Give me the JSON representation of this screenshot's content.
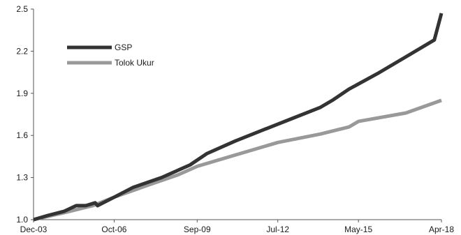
{
  "chart_data": {
    "type": "line",
    "xlabel": "",
    "ylabel": "",
    "x_ticks": [
      "Dec-03",
      "Oct-06",
      "Sep-09",
      "Jul-12",
      "May-15",
      "Apr-18"
    ],
    "x_range": [
      "Dec-03",
      "Apr-18"
    ],
    "y_ticks": [
      "1.0",
      "1.3",
      "1.6",
      "1.9",
      "2.2",
      "2.5"
    ],
    "ylim": [
      1.0,
      2.5
    ],
    "grid": false,
    "legend_position": "top-left",
    "series": [
      {
        "name": "GSP",
        "color": "#333333",
        "points": [
          [
            "Dec-03",
            1.0
          ],
          [
            "Jun-04",
            1.03
          ],
          [
            "Jan-05",
            1.06
          ],
          [
            "Jun-05",
            1.1
          ],
          [
            "Oct-05",
            1.1
          ],
          [
            "Feb-06",
            1.12
          ],
          [
            "Mar-06",
            1.1
          ],
          [
            "Oct-06",
            1.16
          ],
          [
            "Jun-07",
            1.23
          ],
          [
            "Jun-08",
            1.3
          ],
          [
            "Jun-09",
            1.39
          ],
          [
            "Jan-10",
            1.47
          ],
          [
            "Jan-11",
            1.56
          ],
          [
            "Jan-12",
            1.64
          ],
          [
            "Jan-13",
            1.72
          ],
          [
            "Jan-14",
            1.8
          ],
          [
            "Jun-14",
            1.85
          ],
          [
            "Jan-15",
            1.93
          ],
          [
            "Jan-16",
            2.04
          ],
          [
            "Jan-17",
            2.16
          ],
          [
            "Jan-18",
            2.28
          ],
          [
            "Apr-18",
            2.47
          ]
        ]
      },
      {
        "name": "Tolok Ukur",
        "color": "#999999",
        "points": [
          [
            "Dec-03",
            1.0
          ],
          [
            "Jan-05",
            1.05
          ],
          [
            "Jan-06",
            1.1
          ],
          [
            "Oct-06",
            1.16
          ],
          [
            "Jan-08",
            1.25
          ],
          [
            "Jan-09",
            1.32
          ],
          [
            "Sep-09",
            1.38
          ],
          [
            "Jan-11",
            1.46
          ],
          [
            "Jul-12",
            1.55
          ],
          [
            "Jan-14",
            1.61
          ],
          [
            "Jan-15",
            1.66
          ],
          [
            "May-15",
            1.7
          ],
          [
            "Jan-17",
            1.76
          ],
          [
            "Apr-18",
            1.85
          ]
        ]
      }
    ]
  }
}
